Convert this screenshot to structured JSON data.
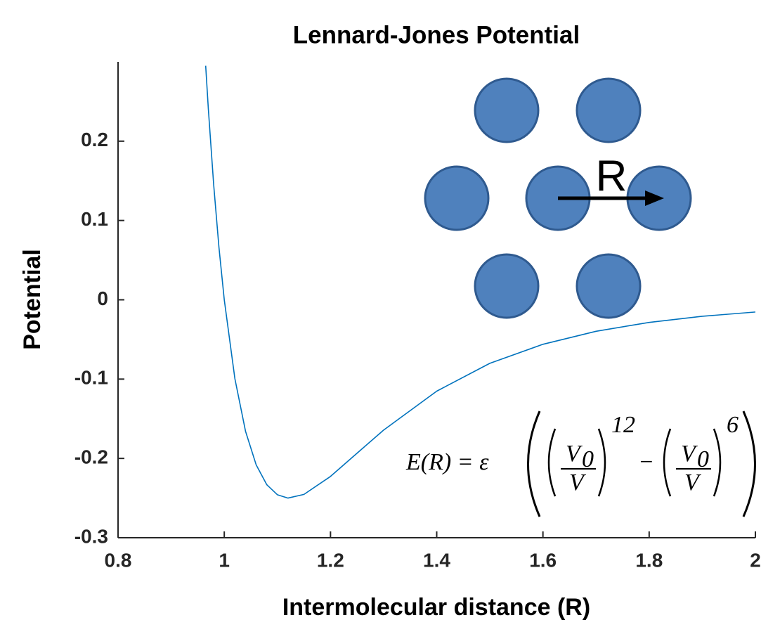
{
  "chart_data": {
    "type": "line",
    "title": "Lennard-Jones Potential",
    "x_label": "Intermolecular distance (R)",
    "y_label": "Potential",
    "x": [
      0.965,
      0.97,
      0.98,
      0.99,
      1.0,
      1.02,
      1.04,
      1.06,
      1.08,
      1.1,
      1.12,
      1.15,
      1.2,
      1.25,
      1.3,
      1.4,
      1.5,
      1.6,
      1.7,
      1.8,
      1.9,
      2.0
    ],
    "series": [
      {
        "color": "#0072bd",
        "values": [
          0.2951,
          0.2407,
          0.1455,
          0.066,
          0,
          -0.0995,
          -0.1657,
          -0.208,
          -0.2331,
          -0.2458,
          -0.25,
          -0.2454,
          -0.2227,
          -0.1934,
          -0.1643,
          -0.1152,
          -0.0801,
          -0.0561,
          -0.0397,
          -0.0285,
          -0.0208,
          -0.0154
        ]
      }
    ],
    "xlim": [
      0.8,
      2
    ],
    "ylim": [
      -0.3,
      0.3
    ],
    "xticks": [
      0.8,
      1,
      1.2,
      1.4,
      1.6,
      1.8,
      2
    ],
    "yticks": [
      -0.3,
      -0.2,
      -0.1,
      0,
      0.1,
      0.2
    ],
    "annotations": {
      "distance": "R",
      "formula": {
        "lhs": "E(R) = ε",
        "numerator": "V",
        "subscript": "0",
        "denominator": "V",
        "exponent_1": "12",
        "operator": "−",
        "exponent_2": "6"
      }
    }
  }
}
